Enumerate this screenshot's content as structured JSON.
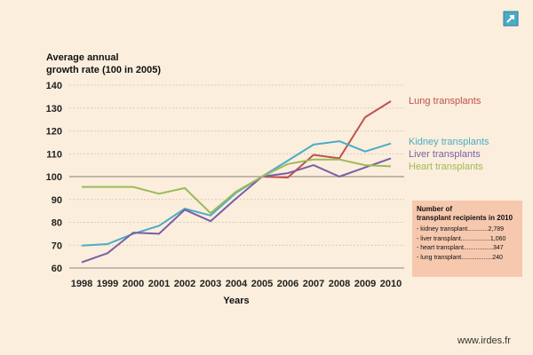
{
  "chart_data": {
    "type": "line",
    "ylabel_line1": "Average annual",
    "ylabel_line2": "growth rate (100 in 2005)",
    "xlabel": "Years",
    "ylim": [
      60,
      140
    ],
    "yticks": [
      60,
      70,
      80,
      90,
      100,
      110,
      120,
      130,
      140
    ],
    "reference_line": 100,
    "x": [
      1998,
      1999,
      2000,
      2001,
      2002,
      2003,
      2004,
      2005,
      2006,
      2007,
      2008,
      2009,
      2010
    ],
    "series": [
      {
        "name": "Lung transplants",
        "color": "#c0504d",
        "values": [
          null,
          null,
          null,
          null,
          null,
          null,
          null,
          100,
          99.6,
          109.5,
          108,
          126,
          133
        ]
      },
      {
        "name": "Kidney transplants",
        "color": "#4bacc6",
        "values": [
          69.8,
          70.5,
          75,
          78.5,
          86,
          83,
          93,
          100,
          107,
          114,
          115.5,
          111,
          114.5
        ]
      },
      {
        "name": "Liver transplants",
        "color": "#7b5ea7",
        "values": [
          62.5,
          66.5,
          75.5,
          75,
          85.5,
          80.5,
          90.5,
          100,
          101.5,
          105,
          100,
          104,
          108
        ]
      },
      {
        "name": "Heart transplants",
        "color": "#9bbb59",
        "values": [
          95.5,
          95.5,
          95.5,
          92.5,
          95,
          84,
          93.5,
          100,
          105.5,
          107.5,
          107.5,
          105,
          104.5
        ]
      }
    ],
    "grid": "horizontal"
  },
  "legend_box": {
    "title_line1": "Number of",
    "title_line2": "transplant recipients in 2010",
    "rows": [
      "- kidney transplant............2,789",
      "- liver transplant.................1,060",
      "- heart transplant.................347",
      "- lung transplant..................240"
    ]
  },
  "site_url": "www.irdes.fr",
  "icon": "share-arrow-icon"
}
